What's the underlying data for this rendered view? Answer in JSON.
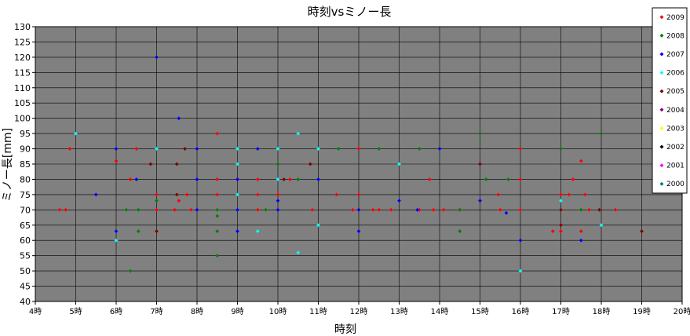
{
  "chart_data": {
    "type": "scatter",
    "title": "時刻vsミノー長",
    "xlabel": "時刻",
    "ylabel": "ミノー長[mm]",
    "xlim": [
      4,
      20
    ],
    "ylim": [
      40,
      130
    ],
    "x_ticks": [
      "4時",
      "5時",
      "6時",
      "7時",
      "8時",
      "9時",
      "10時",
      "11時",
      "12時",
      "13時",
      "14時",
      "15時",
      "16時",
      "17時",
      "18時",
      "19時",
      "20時"
    ],
    "y_ticks": [
      "40",
      "45",
      "50",
      "55",
      "60",
      "65",
      "70",
      "75",
      "80",
      "85",
      "90",
      "95",
      "100",
      "105",
      "110",
      "115",
      "120",
      "125",
      "130"
    ],
    "grid": true,
    "plot_background": "#808080",
    "legend_position": "right",
    "series": [
      {
        "name": "2009",
        "color": "#FF0000",
        "points": [
          [
            4.6,
            70
          ],
          [
            4.75,
            70
          ],
          [
            4.85,
            90
          ],
          [
            6.0,
            86
          ],
          [
            6.35,
            80
          ],
          [
            6.5,
            90
          ],
          [
            7.0,
            75
          ],
          [
            7.0,
            70
          ],
          [
            7.45,
            70
          ],
          [
            7.55,
            73
          ],
          [
            7.75,
            75
          ],
          [
            7.85,
            70
          ],
          [
            8.5,
            95
          ],
          [
            8.5,
            80
          ],
          [
            8.5,
            75
          ],
          [
            9.0,
            80
          ],
          [
            9.5,
            80
          ],
          [
            9.5,
            75
          ],
          [
            9.5,
            70
          ],
          [
            10.0,
            75
          ],
          [
            10.3,
            80
          ],
          [
            10.85,
            70
          ],
          [
            11.45,
            75
          ],
          [
            11.85,
            70
          ],
          [
            12.0,
            90
          ],
          [
            12.0,
            75
          ],
          [
            12.0,
            70
          ],
          [
            12.35,
            70
          ],
          [
            12.5,
            70
          ],
          [
            12.8,
            70
          ],
          [
            13.5,
            70
          ],
          [
            13.75,
            80
          ],
          [
            13.85,
            70
          ],
          [
            14.1,
            70
          ],
          [
            14.5,
            70
          ],
          [
            15.45,
            75
          ],
          [
            15.5,
            70
          ],
          [
            16.0,
            90
          ],
          [
            16.0,
            80
          ],
          [
            16.0,
            70
          ],
          [
            16.8,
            63
          ],
          [
            17.0,
            75
          ],
          [
            17.0,
            63
          ],
          [
            17.2,
            75
          ],
          [
            17.3,
            80
          ],
          [
            17.5,
            86
          ],
          [
            17.5,
            63
          ],
          [
            17.6,
            75
          ],
          [
            17.7,
            70
          ],
          [
            18.35,
            70
          ]
        ]
      },
      {
        "name": "2008",
        "color": "#008000",
        "points": [
          [
            6.25,
            70
          ],
          [
            6.35,
            50
          ],
          [
            6.55,
            70
          ],
          [
            6.55,
            63
          ],
          [
            7.0,
            73
          ],
          [
            8.5,
            70
          ],
          [
            8.5,
            68
          ],
          [
            8.5,
            63
          ],
          [
            8.5,
            55
          ],
          [
            9.7,
            70
          ],
          [
            10.0,
            85
          ],
          [
            10.5,
            80
          ],
          [
            11.5,
            90
          ],
          [
            12.5,
            90
          ],
          [
            13.5,
            90
          ],
          [
            14.5,
            70
          ],
          [
            14.5,
            63
          ],
          [
            15.0,
            95
          ],
          [
            15.15,
            80
          ],
          [
            15.7,
            80
          ],
          [
            17.0,
            90
          ],
          [
            17.5,
            70
          ],
          [
            18.0,
            95
          ]
        ]
      },
      {
        "name": "2007",
        "color": "#0000FF",
        "points": [
          [
            5.5,
            75
          ],
          [
            6.0,
            90
          ],
          [
            6.0,
            63
          ],
          [
            6.5,
            80
          ],
          [
            7.0,
            120
          ],
          [
            7.55,
            100
          ],
          [
            8.0,
            90
          ],
          [
            8.0,
            80
          ],
          [
            8.0,
            70
          ],
          [
            9.0,
            80
          ],
          [
            9.0,
            70
          ],
          [
            9.0,
            63
          ],
          [
            9.5,
            90
          ],
          [
            10.0,
            73
          ],
          [
            10.0,
            70
          ],
          [
            11.0,
            80
          ],
          [
            12.0,
            70
          ],
          [
            12.0,
            63
          ],
          [
            13.0,
            73
          ],
          [
            13.45,
            70
          ],
          [
            14.0,
            90
          ],
          [
            15.0,
            73
          ],
          [
            15.65,
            69
          ],
          [
            16.0,
            60
          ],
          [
            17.5,
            60
          ]
        ]
      },
      {
        "name": "2006",
        "color": "#00FFFF",
        "points": [
          [
            5.0,
            95
          ],
          [
            6.0,
            60
          ],
          [
            7.0,
            90
          ],
          [
            9.0,
            90
          ],
          [
            9.0,
            85
          ],
          [
            9.0,
            75
          ],
          [
            9.5,
            63
          ],
          [
            10.0,
            90
          ],
          [
            10.0,
            80
          ],
          [
            10.5,
            95
          ],
          [
            10.5,
            56
          ],
          [
            11.0,
            90
          ],
          [
            11.0,
            65
          ],
          [
            13.0,
            85
          ],
          [
            16.0,
            50
          ],
          [
            17.0,
            73
          ],
          [
            18.0,
            65
          ]
        ]
      },
      {
        "name": "2005",
        "color": "#800000",
        "points": [
          [
            6.85,
            85
          ],
          [
            7.0,
            63
          ],
          [
            7.5,
            85
          ],
          [
            7.5,
            75
          ],
          [
            7.7,
            90
          ],
          [
            10.15,
            80
          ],
          [
            10.8,
            85
          ],
          [
            15.0,
            85
          ],
          [
            17.0,
            70
          ],
          [
            17.0,
            65
          ],
          [
            17.95,
            70
          ],
          [
            19.0,
            63
          ]
        ]
      },
      {
        "name": "2004",
        "color": "#800080",
        "points": []
      },
      {
        "name": "2003",
        "color": "#FFFF00",
        "points": []
      },
      {
        "name": "2002",
        "color": "#000000",
        "points": []
      },
      {
        "name": "2001",
        "color": "#FF00FF",
        "points": []
      },
      {
        "name": "2000",
        "color": "#008080",
        "points": []
      }
    ]
  }
}
